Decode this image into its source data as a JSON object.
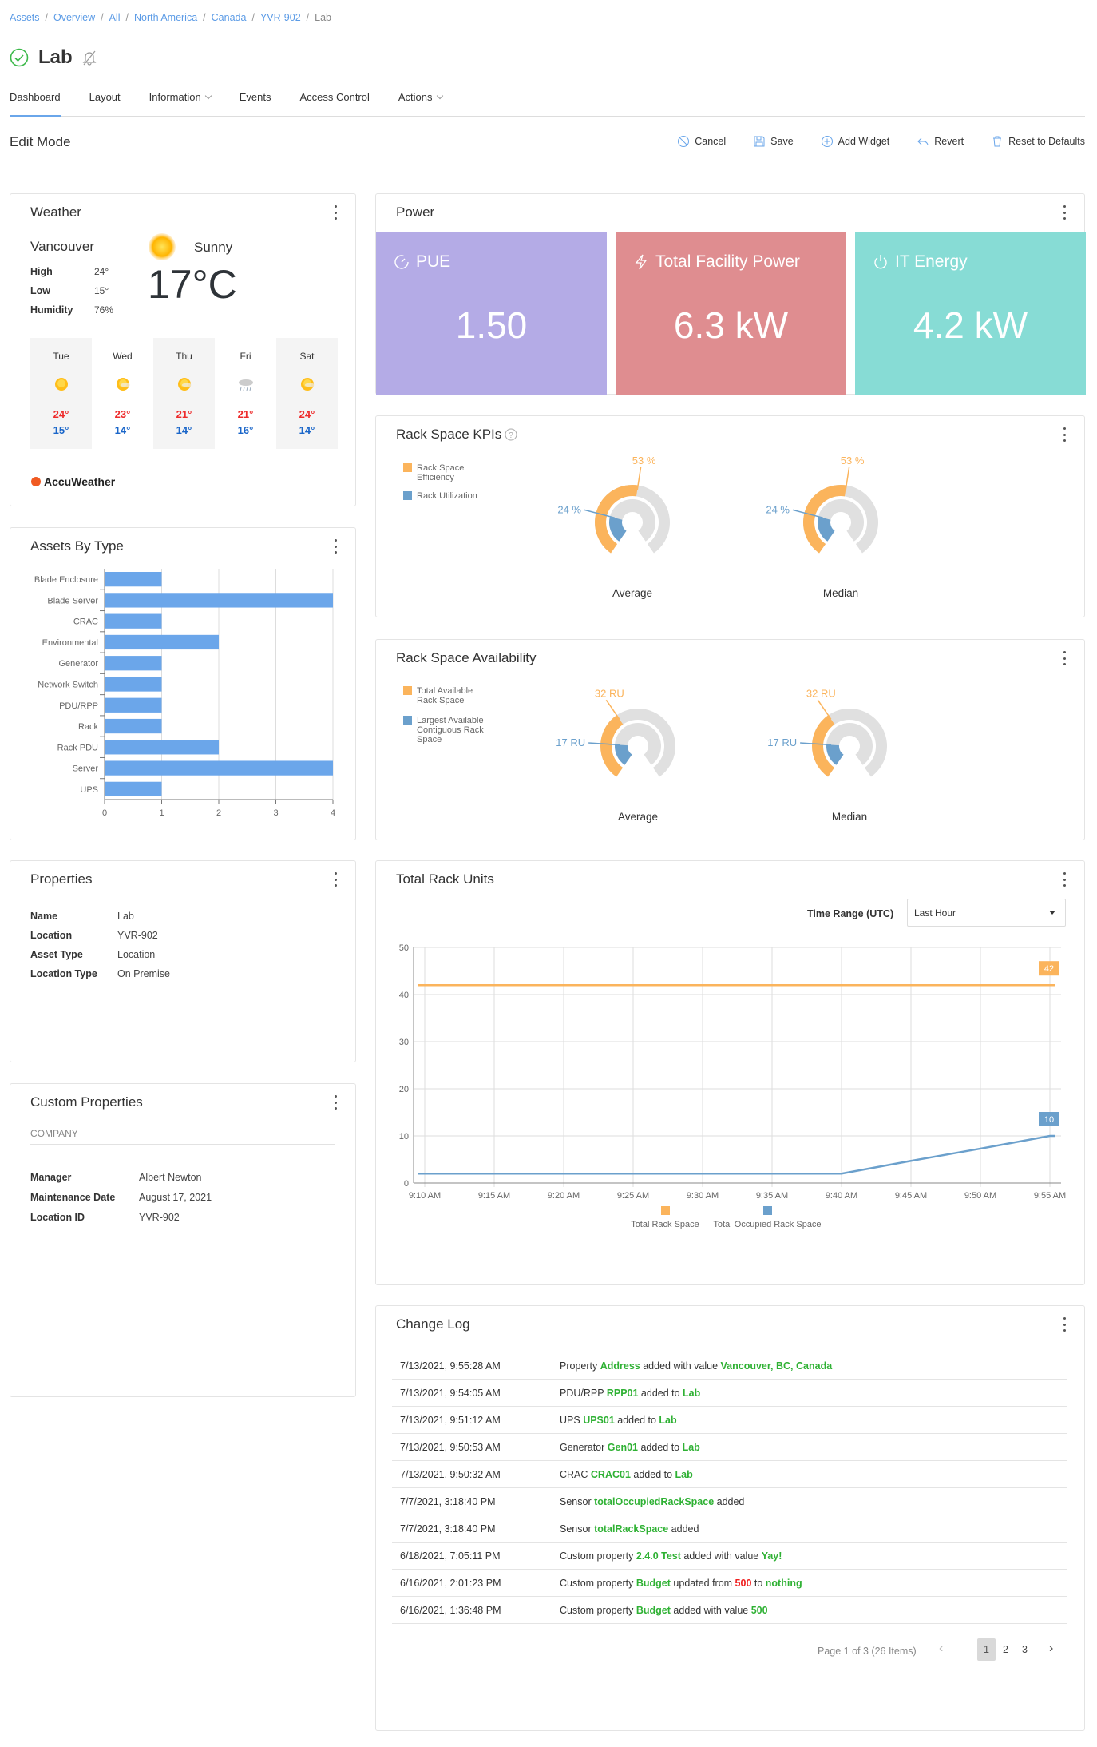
{
  "breadcrumb": [
    "Assets",
    "Overview",
    "All",
    "North America",
    "Canada",
    "YVR-902",
    "Lab"
  ],
  "page": {
    "title": "Lab",
    "status": "ok",
    "status_color": "#3cb94a"
  },
  "tabs": [
    {
      "label": "Dashboard",
      "active": true
    },
    {
      "label": "Layout"
    },
    {
      "label": "Information",
      "dropdown": true
    },
    {
      "label": "Events"
    },
    {
      "label": "Access Control"
    },
    {
      "label": "Actions",
      "dropdown": true
    }
  ],
  "edit_mode": {
    "title": "Edit Mode",
    "buttons": [
      {
        "label": "Cancel",
        "icon": "cancel-icon"
      },
      {
        "label": "Save",
        "icon": "save-icon"
      },
      {
        "label": "Add Widget",
        "icon": "add-circle-icon"
      },
      {
        "label": "Revert",
        "icon": "revert-icon"
      },
      {
        "label": "Reset to Defaults",
        "icon": "trash-icon"
      }
    ]
  },
  "weather": {
    "title": "Weather",
    "city": "Vancouver",
    "condition": "Sunny",
    "temp": "17°C",
    "stats": [
      {
        "label": "High",
        "value": "24°"
      },
      {
        "label": "Low",
        "value": "15°"
      },
      {
        "label": "Humidity",
        "value": "76%"
      }
    ],
    "forecast": [
      {
        "day": "Tue",
        "hi": "24°",
        "lo": "15°",
        "icon": "sunny"
      },
      {
        "day": "Wed",
        "hi": "23°",
        "lo": "14°",
        "icon": "mostly-sunny"
      },
      {
        "day": "Thu",
        "hi": "21°",
        "lo": "14°",
        "icon": "partly-cloudy"
      },
      {
        "day": "Fri",
        "hi": "21°",
        "lo": "16°",
        "icon": "rain"
      },
      {
        "day": "Sat",
        "hi": "24°",
        "lo": "14°",
        "icon": "hazy-sunny"
      }
    ],
    "provider": "AccuWeather"
  },
  "power": {
    "title": "Power",
    "tiles": [
      {
        "label": "PUE",
        "value": "1.50",
        "icon": "gauge-icon",
        "color": "#b4abe6"
      },
      {
        "label": "Total Facility Power",
        "value": "6.3 kW",
        "icon": "bolt-icon",
        "color": "#df8d90"
      },
      {
        "label": "IT Energy",
        "value": "4.2 kW",
        "icon": "power-icon",
        "color": "#87dcd5"
      }
    ]
  },
  "properties": {
    "title": "Properties",
    "rows": [
      {
        "label": "Name",
        "value": "Lab"
      },
      {
        "label": "Location",
        "value": "YVR-902"
      },
      {
        "label": "Asset Type",
        "value": "Location"
      },
      {
        "label": "Location Type",
        "value": "On Premise"
      }
    ]
  },
  "custom_properties": {
    "title": "Custom Properties",
    "section": "COMPANY",
    "rows": [
      {
        "label": "Manager",
        "value": "Albert Newton"
      },
      {
        "label": "Maintenance Date",
        "value": "August 17, 2021"
      },
      {
        "label": "Location ID",
        "value": "YVR-902"
      }
    ]
  },
  "time_range": {
    "label": "Time Range (UTC)",
    "value": "Last Hour"
  },
  "change_log": {
    "title": "Change Log",
    "rows": [
      {
        "date": "7/13/2021, 9:55:28 AM",
        "msg": [
          [
            "Property ",
            "n"
          ],
          [
            "Address",
            "g"
          ],
          [
            " added with value ",
            "n"
          ],
          [
            "Vancouver, BC, Canada",
            "g"
          ]
        ]
      },
      {
        "date": "7/13/2021, 9:54:05 AM",
        "msg": [
          [
            "PDU/RPP ",
            "n"
          ],
          [
            "RPP01",
            "g"
          ],
          [
            " added to ",
            "n"
          ],
          [
            "Lab",
            "g"
          ]
        ]
      },
      {
        "date": "7/13/2021, 9:51:12 AM",
        "msg": [
          [
            "UPS ",
            "n"
          ],
          [
            "UPS01",
            "g"
          ],
          [
            " added to ",
            "n"
          ],
          [
            "Lab",
            "g"
          ]
        ]
      },
      {
        "date": "7/13/2021, 9:50:53 AM",
        "msg": [
          [
            "Generator ",
            "n"
          ],
          [
            "Gen01",
            "g"
          ],
          [
            " added to ",
            "n"
          ],
          [
            "Lab",
            "g"
          ]
        ]
      },
      {
        "date": "7/13/2021, 9:50:32 AM",
        "msg": [
          [
            "CRAC ",
            "n"
          ],
          [
            "CRAC01",
            "g"
          ],
          [
            " added to ",
            "n"
          ],
          [
            "Lab",
            "g"
          ]
        ]
      },
      {
        "date": "7/7/2021, 3:18:40 PM",
        "msg": [
          [
            "Sensor ",
            "n"
          ],
          [
            "totalOccupiedRackSpace",
            "g"
          ],
          [
            " added",
            "n"
          ]
        ]
      },
      {
        "date": "7/7/2021, 3:18:40 PM",
        "msg": [
          [
            "Sensor ",
            "n"
          ],
          [
            "totalRackSpace",
            "g"
          ],
          [
            " added",
            "n"
          ]
        ]
      },
      {
        "date": "6/18/2021, 7:05:11 PM",
        "msg": [
          [
            "Custom property ",
            "n"
          ],
          [
            "2.4.0 Test",
            "g"
          ],
          [
            " added with value ",
            "n"
          ],
          [
            "Yay!",
            "g"
          ]
        ]
      },
      {
        "date": "6/16/2021, 2:01:23 PM",
        "msg": [
          [
            "Custom property ",
            "n"
          ],
          [
            "Budget",
            "g"
          ],
          [
            " updated from ",
            "n"
          ],
          [
            "500",
            "r"
          ],
          [
            " to ",
            "n"
          ],
          [
            "nothing",
            "g"
          ]
        ]
      },
      {
        "date": "6/16/2021, 1:36:48 PM",
        "msg": [
          [
            "Custom property ",
            "n"
          ],
          [
            "Budget",
            "g"
          ],
          [
            " added with value ",
            "n"
          ],
          [
            "500",
            "g"
          ]
        ]
      }
    ],
    "pagination": {
      "summary": "Page 1 of 3 (26 Items)",
      "pages": [
        "1",
        "2",
        "3"
      ],
      "current": "1"
    }
  },
  "chart_data": [
    {
      "type": "bar",
      "orientation": "horizontal",
      "title": "Assets By Type",
      "categories": [
        "Blade Enclosure",
        "Blade Server",
        "CRAC",
        "Environmental",
        "Generator",
        "Network Switch",
        "PDU/RPP",
        "Rack",
        "Rack PDU",
        "Server",
        "UPS"
      ],
      "values": [
        1,
        4,
        1,
        2,
        1,
        1,
        1,
        1,
        2,
        4,
        1
      ],
      "xlim": [
        0,
        4
      ],
      "ticks": [
        "0",
        "1",
        "2",
        "3",
        "4"
      ],
      "color": "#6ba6ea",
      "grid": true
    },
    {
      "type": "gauge",
      "title": "Rack Space KPIs",
      "help_icon": true,
      "legend": [
        "Rack Space Efficiency",
        "Rack Utilization"
      ],
      "colors": [
        "#fbb45c",
        "#6ba0cc"
      ],
      "gauges": [
        {
          "label": "Average",
          "values": [
            53,
            24
          ],
          "texts": [
            "53 %",
            "24 %"
          ]
        },
        {
          "label": "Median",
          "values": [
            53,
            24
          ],
          "texts": [
            "53 %",
            "24 %"
          ]
        }
      ],
      "range": [
        0,
        100
      ]
    },
    {
      "type": "gauge",
      "title": "Rack Space Availability",
      "legend": [
        "Total Available Rack Space",
        "Largest Available Contiguous Rack Space"
      ],
      "colors": [
        "#fbb45c",
        "#6ba0cc"
      ],
      "gauges": [
        {
          "label": "Average",
          "values": [
            32,
            17
          ],
          "texts": [
            "32 RU",
            "17 RU"
          ]
        },
        {
          "label": "Median",
          "values": [
            32,
            17
          ],
          "texts": [
            "32 RU",
            "17 RU"
          ]
        }
      ]
    },
    {
      "type": "line",
      "title": "Total Rack Units",
      "x": [
        "9:10 AM",
        "9:15 AM",
        "9:20 AM",
        "9:25 AM",
        "9:30 AM",
        "9:35 AM",
        "9:40 AM",
        "9:45 AM",
        "9:50 AM",
        "9:55 AM"
      ],
      "series": [
        {
          "name": "Total Rack Space",
          "color": "#fbb45c",
          "values": [
            42,
            42,
            42,
            42,
            42,
            42,
            42,
            42,
            42,
            42
          ],
          "end_label": "42"
        },
        {
          "name": "Total Occupied Rack Space",
          "color": "#6ba0cc",
          "values": [
            2,
            2,
            2,
            2,
            2,
            2,
            2,
            4.7,
            7.3,
            10
          ],
          "end_label": "10"
        }
      ],
      "ylim": [
        0,
        50
      ],
      "yticks": [
        "0",
        "10",
        "20",
        "30",
        "40",
        "50"
      ],
      "grid": true,
      "legend": "bottom"
    }
  ]
}
